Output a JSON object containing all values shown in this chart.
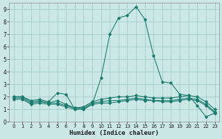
{
  "title": "",
  "xlabel": "Humidex (Indice chaleur)",
  "ylabel": "",
  "background_color": "#cce8e6",
  "grid_color": "#aacfcf",
  "line_color": "#1a7a6e",
  "xlim": [
    -0.5,
    23.5
  ],
  "ylim": [
    0,
    9.5
  ],
  "xticks": [
    0,
    1,
    2,
    3,
    4,
    5,
    6,
    7,
    8,
    9,
    10,
    11,
    12,
    13,
    14,
    15,
    16,
    17,
    18,
    19,
    20,
    21,
    22,
    23
  ],
  "yticks": [
    0,
    1,
    2,
    3,
    4,
    5,
    6,
    7,
    8,
    9
  ],
  "lines": [
    {
      "x": [
        0,
        1,
        2,
        3,
        4,
        5,
        6,
        7,
        8,
        9,
        10,
        11,
        12,
        13,
        14,
        15,
        16,
        17,
        18,
        19,
        20,
        21,
        22,
        23
      ],
      "y": [
        2.0,
        2.0,
        1.7,
        1.8,
        1.6,
        2.3,
        2.2,
        1.0,
        1.0,
        1.4,
        3.5,
        7.0,
        8.3,
        8.5,
        9.2,
        8.2,
        5.3,
        3.2,
        3.1,
        2.2,
        2.1,
        1.3,
        0.4,
        0.7
      ]
    },
    {
      "x": [
        0,
        1,
        2,
        3,
        4,
        5,
        6,
        7,
        8,
        9,
        10,
        11,
        12,
        13,
        14,
        15,
        16,
        17,
        18,
        19,
        20,
        21,
        22,
        23
      ],
      "y": [
        2.0,
        2.0,
        1.6,
        1.7,
        1.5,
        1.7,
        1.4,
        1.1,
        1.2,
        1.6,
        1.8,
        1.9,
        2.0,
        2.0,
        2.1,
        2.0,
        1.9,
        1.9,
        1.9,
        2.0,
        2.1,
        2.0,
        1.6,
        1.0
      ]
    },
    {
      "x": [
        0,
        1,
        2,
        3,
        4,
        5,
        6,
        7,
        8,
        9,
        10,
        11,
        12,
        13,
        14,
        15,
        16,
        17,
        18,
        19,
        20,
        21,
        22,
        23
      ],
      "y": [
        1.9,
        1.9,
        1.5,
        1.6,
        1.5,
        1.5,
        1.3,
        1.1,
        1.1,
        1.5,
        1.6,
        1.7,
        1.7,
        1.8,
        1.9,
        1.8,
        1.7,
        1.7,
        1.7,
        1.8,
        1.9,
        1.8,
        1.4,
        0.8
      ]
    },
    {
      "x": [
        0,
        1,
        2,
        3,
        4,
        5,
        6,
        7,
        8,
        9,
        10,
        11,
        12,
        13,
        14,
        15,
        16,
        17,
        18,
        19,
        20,
        21,
        22,
        23
      ],
      "y": [
        1.8,
        1.8,
        1.4,
        1.5,
        1.4,
        1.4,
        1.2,
        1.0,
        1.0,
        1.4,
        1.5,
        1.5,
        1.6,
        1.7,
        1.8,
        1.7,
        1.7,
        1.6,
        1.6,
        1.7,
        1.8,
        1.7,
        1.3,
        0.7
      ]
    }
  ]
}
